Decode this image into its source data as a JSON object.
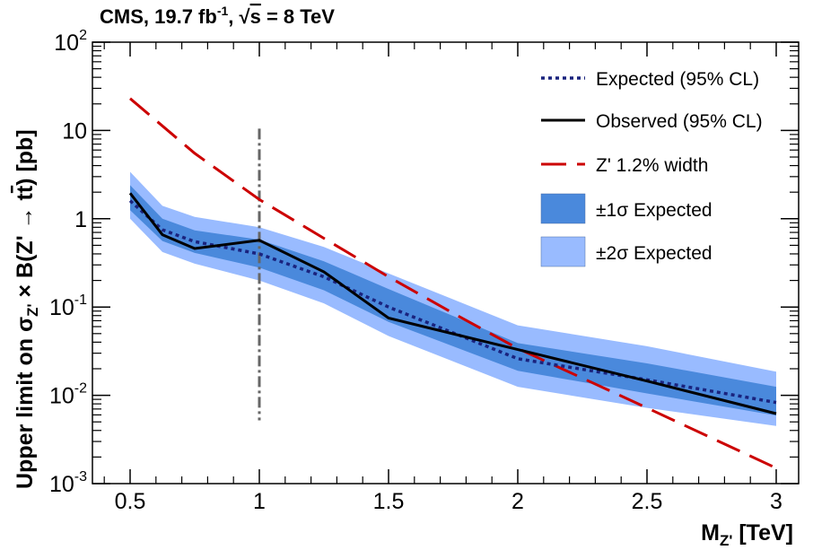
{
  "chart_data": {
    "type": "line",
    "title": "CMS, 19.7 fb^-1, √s = 8 TeV",
    "title_parts": {
      "a": "CMS, 19.7 fb",
      "sup": "-1",
      "b": ", ",
      "root": "√",
      "s": "s",
      "c": " = 8 TeV"
    },
    "xlabel": "M_Z' [TeV]",
    "xlabel_parts": {
      "main": "M",
      "sub": "Z'",
      "unit": " [TeV]"
    },
    "ylabel": "Upper limit on σ_Z' × B(Z' → tt̄) [pb]",
    "ylabel_parts": {
      "a": "Upper limit on σ",
      "sub": "Z'",
      "b": " × B(Z' → t",
      "tbar": "t",
      "c": ") [pb]"
    },
    "x_scale": "linear",
    "y_scale": "log",
    "xlim": [
      0.35,
      3.08
    ],
    "ylim": [
      0.001,
      100
    ],
    "x_ticks": [
      "0.5",
      "1",
      "1.5",
      "2",
      "2.5",
      "3"
    ],
    "x_tick_values": [
      0.5,
      1,
      1.5,
      2,
      2.5,
      3
    ],
    "y_ticks": [
      {
        "base": "10",
        "exp": "-3",
        "value": 0.001
      },
      {
        "base": "10",
        "exp": "-2",
        "value": 0.01
      },
      {
        "base": "10",
        "exp": "-1",
        "value": 0.1
      },
      {
        "base": "1",
        "exp": "",
        "value": 1
      },
      {
        "base": "10",
        "exp": "",
        "value": 10
      },
      {
        "base": "10",
        "exp": "2",
        "value": 100
      }
    ],
    "legend_position": "top-right",
    "legend": [
      {
        "label": "Expected (95% CL)",
        "kind": "dotted",
        "color": "#1a237e"
      },
      {
        "label": "Observed (95% CL)",
        "kind": "solid",
        "color": "#000000"
      },
      {
        "label": "Z' 1.2% width",
        "kind": "dashed",
        "color": "#cc0000"
      },
      {
        "label": "±1σ Expected",
        "kind": "band",
        "color": "#4a89dc"
      },
      {
        "label": "±2σ Expected",
        "kind": "band",
        "color": "#99bbff"
      }
    ],
    "x": [
      0.5,
      0.625,
      0.75,
      1.0,
      1.25,
      1.5,
      2.0,
      2.5,
      3.0
    ],
    "series": [
      {
        "name": "Expected (95% CL)",
        "values": [
          1.6,
          0.75,
          0.55,
          0.4,
          0.22,
          0.1,
          0.026,
          0.015,
          0.0083
        ]
      },
      {
        "name": "Observed (95% CL)",
        "values": [
          1.95,
          0.66,
          0.46,
          0.57,
          0.25,
          0.075,
          0.033,
          0.0145,
          0.0062
        ]
      },
      {
        "name": "Z' 1.2% width",
        "x": [
          0.5,
          0.75,
          1.0,
          1.25,
          1.5,
          1.75,
          2.0,
          2.5,
          3.0
        ],
        "values": [
          23,
          5.5,
          1.65,
          0.6,
          0.22,
          0.085,
          0.034,
          0.0072,
          0.0015
        ]
      },
      {
        "name": "±1σ Expected",
        "lower": [
          1.25,
          0.56,
          0.41,
          0.28,
          0.155,
          0.068,
          0.019,
          0.0105,
          0.0059
        ],
        "upper": [
          2.4,
          1.0,
          0.74,
          0.58,
          0.33,
          0.16,
          0.039,
          0.023,
          0.0125
        ]
      },
      {
        "name": "±2σ Expected",
        "lower": [
          1.0,
          0.42,
          0.31,
          0.2,
          0.11,
          0.047,
          0.0125,
          0.0072,
          0.0045
        ]
      },
      {
        "name": "±2σ Expected",
        "upper": [
          3.4,
          1.4,
          1.05,
          0.8,
          0.48,
          0.24,
          0.062,
          0.036,
          0.0185
        ]
      }
    ],
    "vertical_marker": {
      "x": 1.0,
      "ymin": 0.0052,
      "ymax": 10.5,
      "style": "dash-dot",
      "color": "#666666"
    }
  }
}
